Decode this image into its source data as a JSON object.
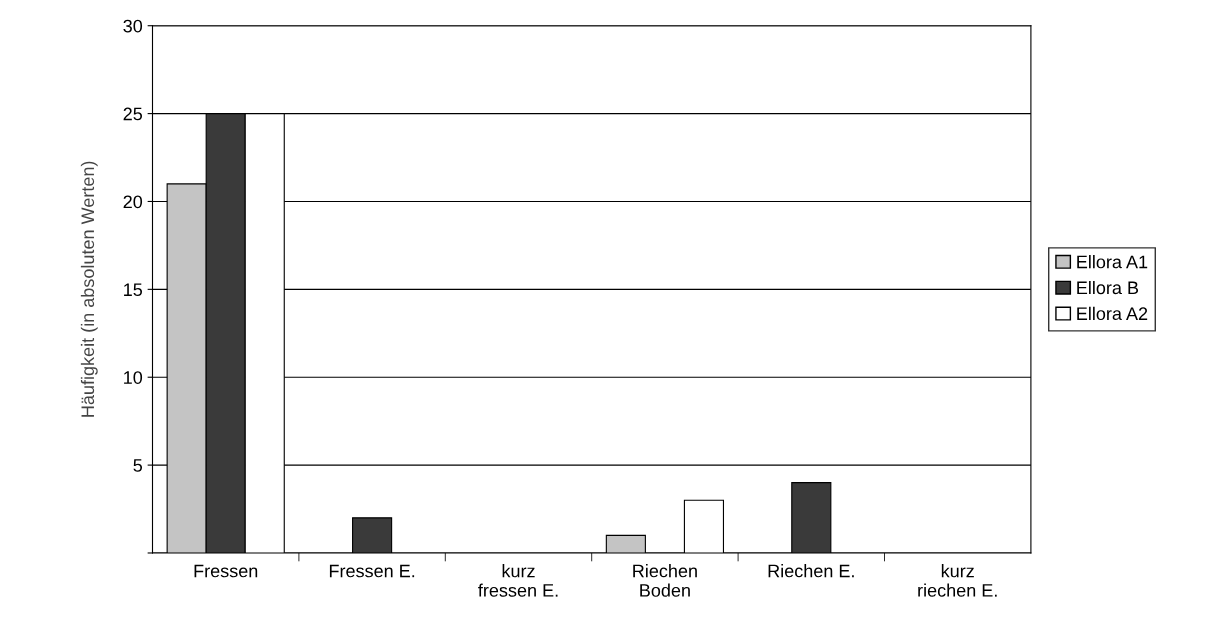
{
  "chart_data": {
    "type": "bar",
    "ylabel": "Häufigkeit (in absoluten Werten)",
    "categories": [
      "Fressen",
      "Fressen E.",
      "kurz\nfressen E.",
      "Riechen\nBoden",
      "Riechen E.",
      "kurz\nriechen E."
    ],
    "series": [
      {
        "name": "Ellora A1",
        "color": "#c4c4c4",
        "values": [
          21,
          0,
          0,
          1,
          0,
          0
        ]
      },
      {
        "name": "Ellora B",
        "color": "#3a3a3a",
        "values": [
          25,
          2,
          0,
          0,
          4,
          0
        ]
      },
      {
        "name": "Ellora A2",
        "color": "#ffffff",
        "values": [
          25,
          0,
          0,
          3,
          0,
          0
        ]
      }
    ],
    "ylim": [
      0,
      30
    ],
    "yticks": [
      {
        "value": 0,
        "label": null
      },
      5,
      10,
      15,
      20,
      25,
      30
    ],
    "grid": "y",
    "legend": "right"
  }
}
